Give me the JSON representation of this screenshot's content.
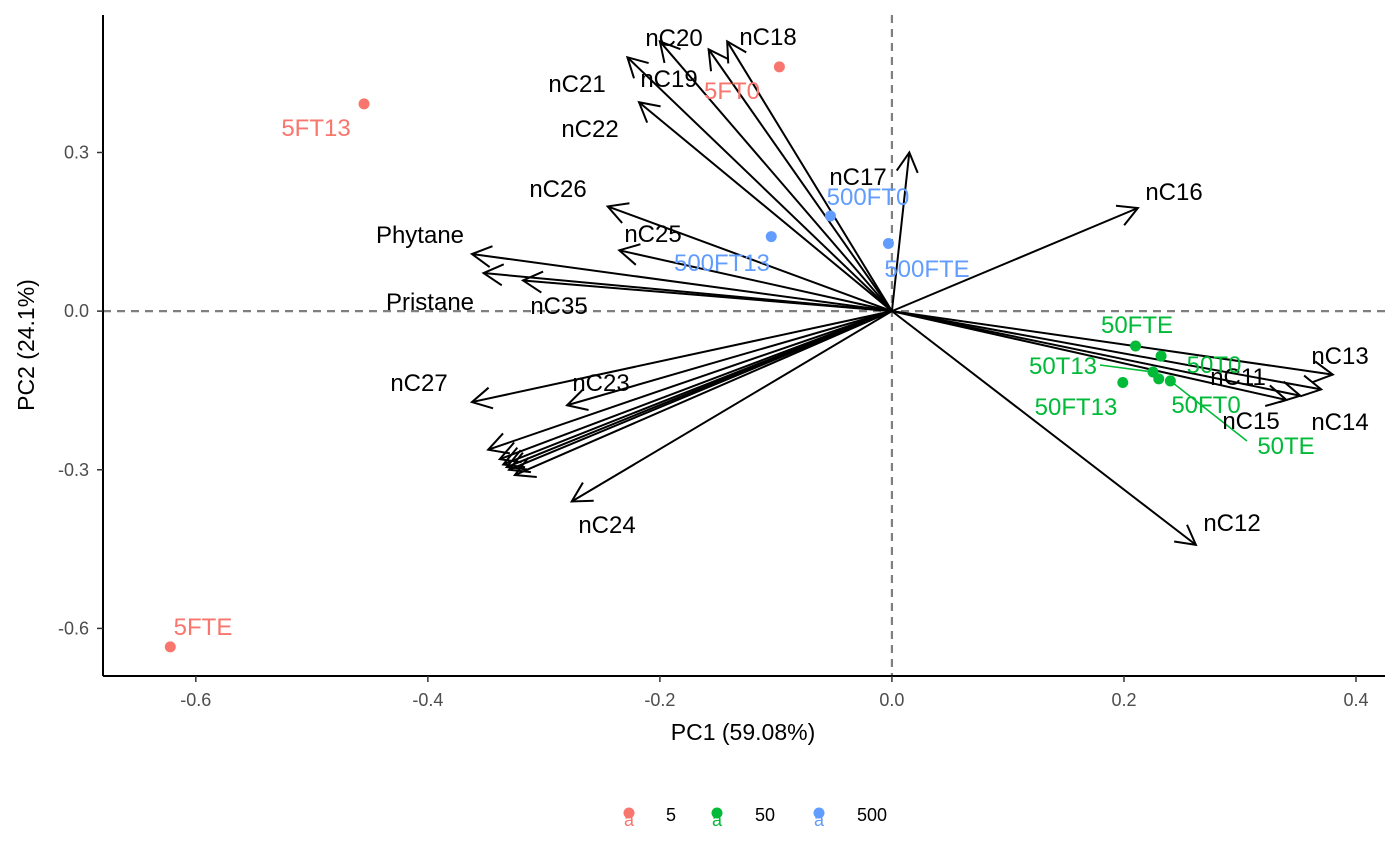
{
  "chart_data": {
    "type": "scatter",
    "subtype": "pca-biplot",
    "xlabel": "PC1 (59.08%)",
    "ylabel": "PC2 (24.1%)",
    "xlim": [
      -0.68,
      0.425
    ],
    "ylim": [
      -0.69,
      0.56
    ],
    "x_ticks": [
      -0.6,
      -0.4,
      -0.2,
      0.0,
      0.2,
      0.4
    ],
    "x_tick_labels": [
      "-0.6",
      "-0.4",
      "-0.2",
      "0.0",
      "0.2",
      "0.4"
    ],
    "y_ticks": [
      -0.6,
      -0.3,
      0.0,
      0.3
    ],
    "y_tick_labels": [
      "-0.6",
      "-0.3",
      "0.0",
      "0.3"
    ],
    "grid": false,
    "reference_lines": {
      "x": 0,
      "y": 0,
      "style": "dashed"
    },
    "legend": {
      "position": "bottom",
      "items": [
        {
          "label": "5",
          "color": "#F8766D"
        },
        {
          "label": "50",
          "color": "#00BA38"
        },
        {
          "label": "500",
          "color": "#619CFF"
        }
      ]
    },
    "points": [
      {
        "label": "5FTE",
        "group": "5",
        "x": -0.622,
        "y": -0.635
      },
      {
        "label": "5FT13",
        "group": "5",
        "x": -0.455,
        "y": 0.392
      },
      {
        "label": "5FT0",
        "group": "5",
        "x": -0.097,
        "y": 0.462
      },
      {
        "label": "500FT0",
        "group": "500",
        "x": -0.053,
        "y": 0.18
      },
      {
        "label": "500FT13",
        "group": "500",
        "x": -0.104,
        "y": 0.141
      },
      {
        "label": "500FTE",
        "group": "500",
        "x": -0.003,
        "y": 0.128
      },
      {
        "label": "50FTE",
        "group": "50",
        "x": 0.21,
        "y": -0.066
      },
      {
        "label": "50T0",
        "group": "50",
        "x": 0.232,
        "y": -0.085
      },
      {
        "label": "50T13",
        "group": "50",
        "x": 0.225,
        "y": -0.115
      },
      {
        "label": "50FT13",
        "group": "50",
        "x": 0.199,
        "y": -0.135
      },
      {
        "label": "50FT0",
        "group": "50",
        "x": 0.23,
        "y": -0.128
      },
      {
        "label": "50TE",
        "group": "50",
        "x": 0.24,
        "y": -0.132
      }
    ],
    "loadings": [
      {
        "name": "nC20",
        "x": -0.2,
        "y": 0.51
      },
      {
        "name": "nC18",
        "x": -0.142,
        "y": 0.51
      },
      {
        "name": "nC21",
        "x": -0.228,
        "y": 0.48
      },
      {
        "name": "nC19",
        "x": -0.158,
        "y": 0.495
      },
      {
        "name": "nC22",
        "x": -0.218,
        "y": 0.395
      },
      {
        "name": "nC17",
        "x": 0.015,
        "y": 0.3
      },
      {
        "name": "nC16",
        "x": 0.212,
        "y": 0.195
      },
      {
        "name": "nC26",
        "x": -0.245,
        "y": 0.198
      },
      {
        "name": "nC25",
        "x": -0.235,
        "y": 0.115
      },
      {
        "name": "Phytane",
        "x": -0.362,
        "y": 0.108
      },
      {
        "name": "Pristane",
        "x": -0.352,
        "y": 0.072
      },
      {
        "name": "nC35",
        "x": -0.318,
        "y": 0.058
      },
      {
        "name": "nC27",
        "x": -0.362,
        "y": -0.172
      },
      {
        "name": "nC23",
        "x": -0.28,
        "y": -0.178
      },
      {
        "name": "nC24",
        "x": -0.276,
        "y": -0.36
      },
      {
        "name": "nC12",
        "x": 0.262,
        "y": -0.442
      },
      {
        "name": "nC13",
        "x": 0.38,
        "y": -0.12
      },
      {
        "name": "nC14",
        "x": 0.37,
        "y": -0.148
      },
      {
        "name": "nC11",
        "x": 0.352,
        "y": -0.16
      },
      {
        "name": "nC15",
        "x": 0.34,
        "y": -0.168
      },
      {
        "name": "",
        "x": -0.348,
        "y": -0.262
      },
      {
        "name": "",
        "x": -0.338,
        "y": -0.28
      },
      {
        "name": "",
        "x": -0.335,
        "y": -0.29
      },
      {
        "name": "",
        "x": -0.332,
        "y": -0.295
      },
      {
        "name": "",
        "x": -0.33,
        "y": -0.3
      },
      {
        "name": "",
        "x": -0.325,
        "y": -0.31
      }
    ],
    "legend_key_glyph": "a"
  }
}
